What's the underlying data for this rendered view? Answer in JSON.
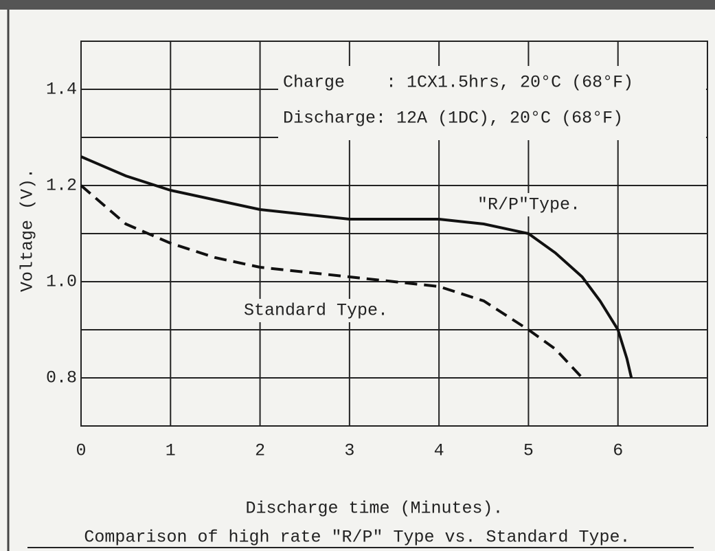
{
  "chart_data": {
    "type": "line",
    "title": "Comparison of high rate \"R/P\" Type vs. Standard Type.",
    "x_label": "Discharge time (Minutes).",
    "y_label": "Voltage (V).",
    "annotations": [
      "Charge    : 1CX1.5hrs, 20°C (68°F)",
      "Discharge: 12A (1DC), 20°C (68°F)"
    ],
    "xlim": [
      0,
      7
    ],
    "xticks": [
      0,
      1,
      2,
      3,
      4,
      5,
      6
    ],
    "ylim": [
      0.7,
      1.5
    ],
    "yticks": [
      0.8,
      {
        "value": 1,
        "label": "1.0"
      },
      1.2,
      1.4
    ],
    "yminorticks": [
      0.9,
      1.1,
      1.3
    ],
    "grid": true,
    "series": [
      {
        "name": "\"R/P\"Type.",
        "color": "#111111",
        "linestyle": "solid",
        "x": [
          0,
          0.5,
          1,
          1.5,
          2,
          2.5,
          3,
          3.5,
          4,
          4.5,
          5,
          5.3,
          5.6,
          5.8,
          6.0,
          6.1,
          6.15
        ],
        "values": [
          1.26,
          1.22,
          1.19,
          1.17,
          1.15,
          1.14,
          1.13,
          1.13,
          1.13,
          1.12,
          1.1,
          1.06,
          1.01,
          0.96,
          0.9,
          0.84,
          0.8
        ]
      },
      {
        "name": "Standard Type.",
        "color": "#111111",
        "linestyle": "dashed",
        "x": [
          0,
          0.25,
          0.5,
          1,
          1.5,
          2,
          2.5,
          3,
          3.5,
          4,
          4.5,
          5,
          5.3,
          5.6
        ],
        "values": [
          1.2,
          1.16,
          1.12,
          1.08,
          1.05,
          1.03,
          1.02,
          1.01,
          1.0,
          0.99,
          0.96,
          0.9,
          0.86,
          0.8
        ]
      }
    ]
  }
}
